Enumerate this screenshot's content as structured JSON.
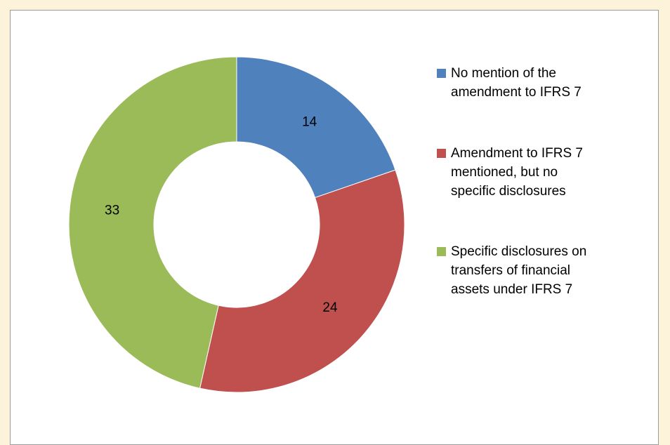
{
  "chart_data": {
    "type": "pie",
    "subtype": "donut",
    "categories": [
      "No mention of the amendment to IFRS 7",
      "Amendment to IFRS 7 mentioned, but no specific disclosures",
      "Specific disclosures on transfers of financial assets under IFRS 7"
    ],
    "values": [
      14,
      24,
      33
    ],
    "value_labels": [
      "14",
      "24",
      "33"
    ],
    "colors": [
      "#4f81bd",
      "#c0504d",
      "#9bbb59"
    ],
    "legend_placement": "right",
    "title": ""
  },
  "legend": {
    "items": [
      {
        "lines": [
          "No mention of the",
          "amendment to IFRS 7"
        ]
      },
      {
        "lines": [
          "Amendment to IFRS 7",
          "mentioned, but no",
          "specific disclosures"
        ]
      },
      {
        "lines": [
          "Specific disclosures on",
          "transfers of financial",
          "assets under IFRS 7"
        ]
      }
    ]
  },
  "colors": {
    "background": "#fdf3da",
    "plot_background": "#ffffff",
    "border": "#9a9a9a"
  }
}
